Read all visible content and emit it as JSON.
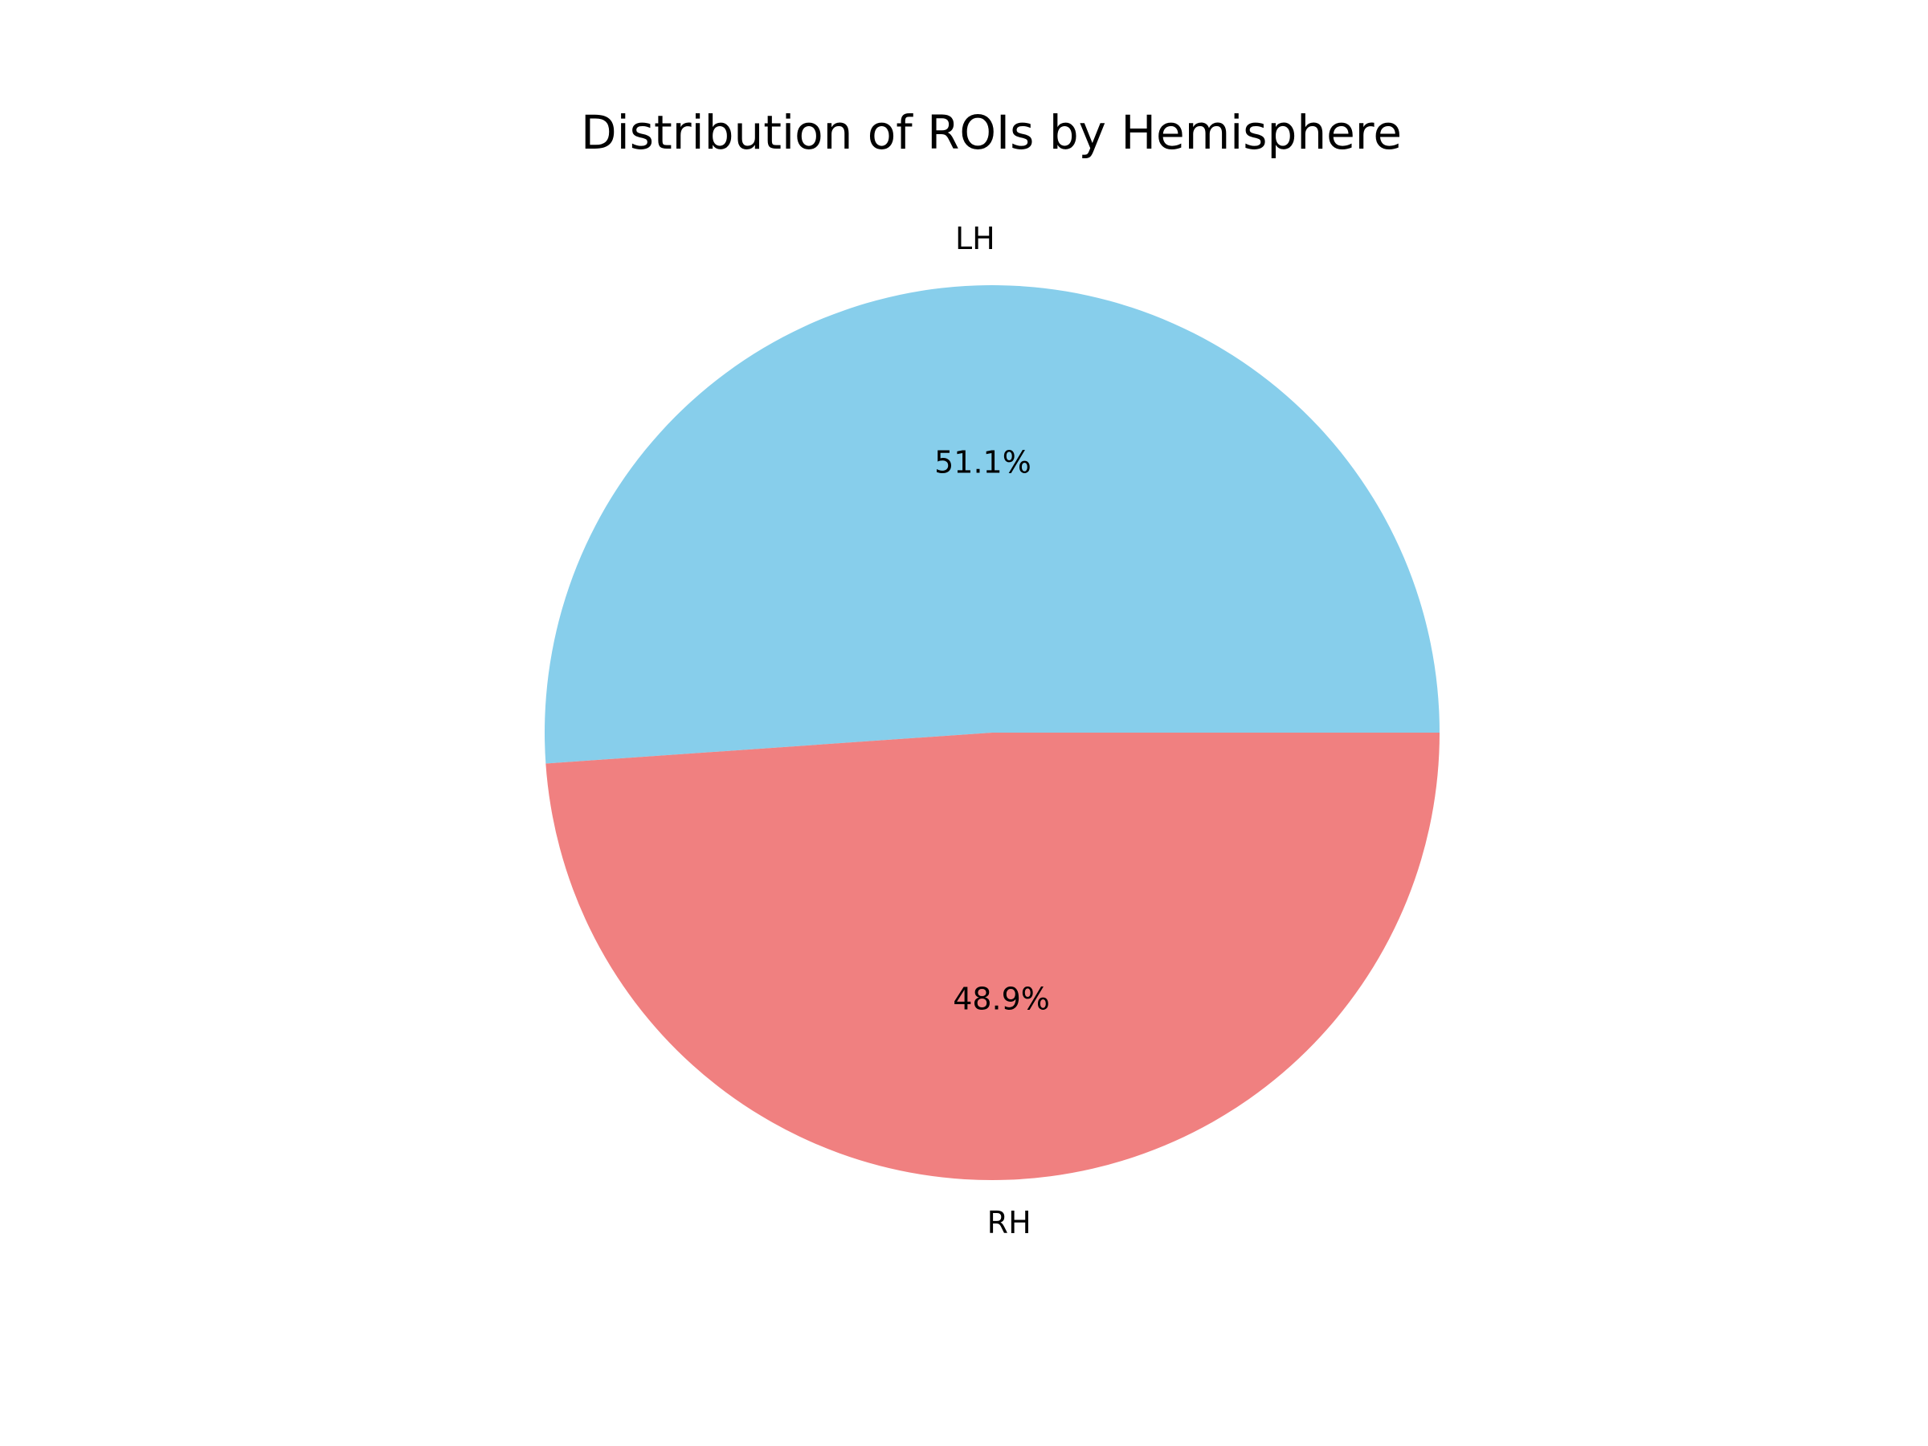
{
  "chart_data": {
    "type": "pie",
    "title": "Distribution of ROIs by Hemisphere",
    "categories": [
      "LH",
      "RH"
    ],
    "values": [
      51.1,
      48.9
    ],
    "labels": [
      "51.1%",
      "48.9%"
    ],
    "colors": [
      "#87CEEB",
      "#F08080"
    ],
    "start_angle_deg": 0,
    "direction": "counterclockwise"
  }
}
